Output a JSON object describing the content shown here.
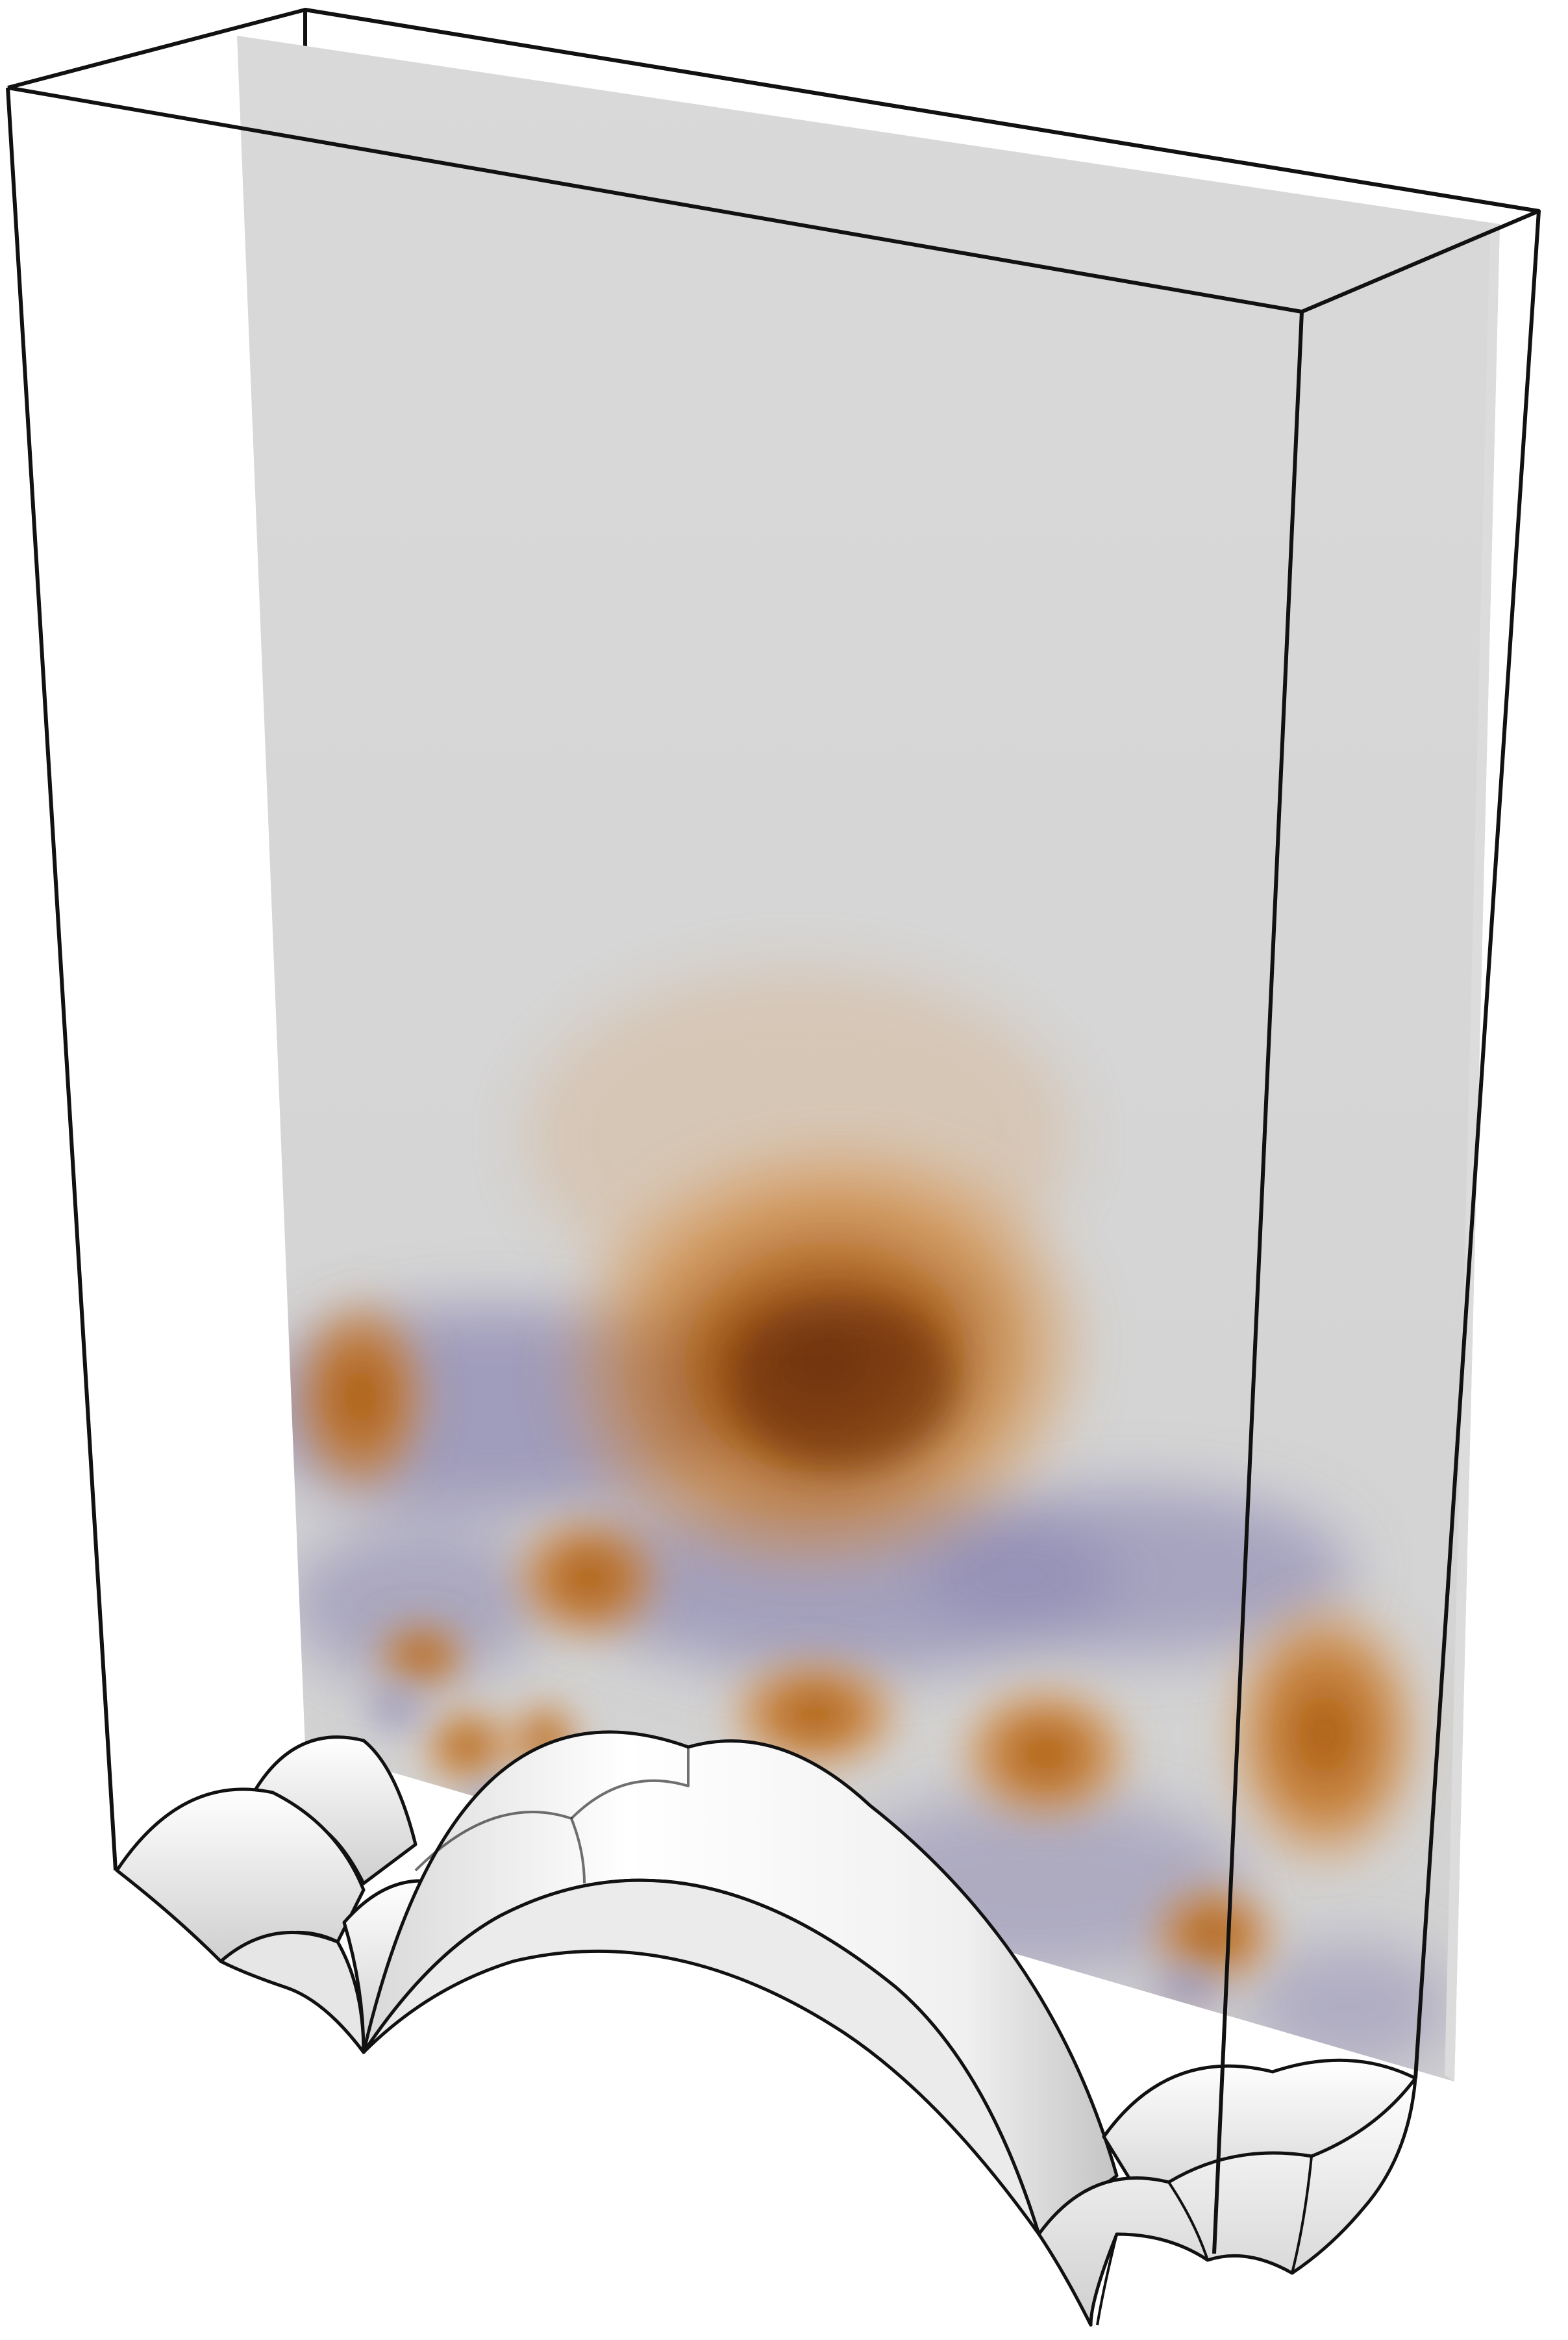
{
  "figure": {
    "colors": {
      "background": "#ffffff",
      "plane": "#d6d6d6",
      "positive": "#b8650f",
      "positive_dark": "#6a2f06",
      "negative": "#8c86ad",
      "edge": "#111111",
      "surface": "#f2f2f2"
    }
  }
}
